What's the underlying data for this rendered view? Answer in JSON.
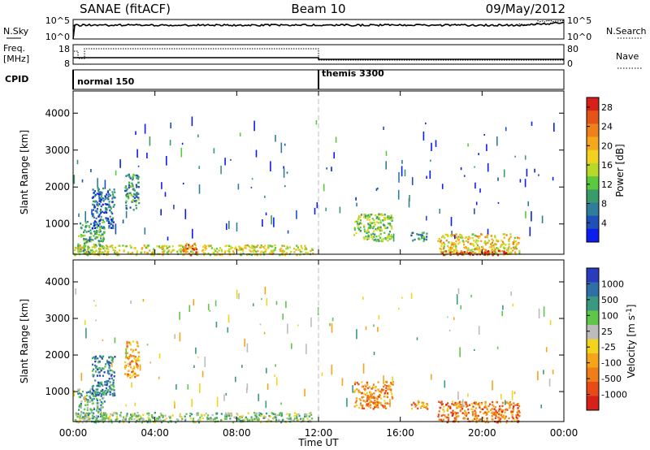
{
  "header": {
    "station": "SANAE (fitACF)",
    "beam": "Beam 10",
    "date": "09/May/2012"
  },
  "nsky_panel": {
    "left_label": "N.Sky",
    "right_label": "N.Search",
    "left_ticks": [
      "10^5",
      "10^0"
    ],
    "right_ticks": [
      "10^5",
      "10^0"
    ]
  },
  "freq_panel": {
    "left_label_1": "Freq.",
    "left_label_2": "[MHz]",
    "right_label": "Nave",
    "left_ticks": [
      "18",
      "8"
    ],
    "right_ticks": [
      "80",
      "0"
    ]
  },
  "cpid_panel": {
    "label": "CPID",
    "modes": [
      {
        "name": "normal 150",
        "start_hour": 0
      },
      {
        "name": "themis 3300",
        "start_hour": 12
      }
    ]
  },
  "x_axis": {
    "label": "Time UT",
    "ticks": [
      "00:00",
      "04:00",
      "08:00",
      "12:00",
      "16:00",
      "20:00",
      "00:00"
    ],
    "tick_hours": [
      0,
      4,
      8,
      12,
      16,
      20,
      24
    ],
    "range_hours": [
      0,
      24
    ]
  },
  "chart_data": [
    {
      "type": "heatmap",
      "name": "power",
      "ylabel": "Slant Range [km]",
      "yticks": [
        "1000",
        "2000",
        "3000",
        "4000"
      ],
      "ylim_km": [
        180,
        4600
      ],
      "xlim_hours": [
        0,
        24
      ],
      "colorbar": {
        "label": "Power [dB]",
        "ticks": [
          "4",
          "8",
          "12",
          "16",
          "20",
          "24",
          "28"
        ],
        "tick_values": [
          4,
          8,
          12,
          16,
          20,
          24,
          28
        ],
        "range": [
          0,
          30
        ],
        "colors": [
          "#0a1ef0",
          "#1f4fb8",
          "#2e7d9a",
          "#3a9b6a",
          "#5cc83c",
          "#b9d928",
          "#f2d21e",
          "#f6a81c",
          "#f0801a",
          "#e45418",
          "#d8201a"
        ]
      },
      "regions": [
        {
          "t": [
            0.2,
            1.5
          ],
          "r": [
            180,
            1100
          ],
          "level": 0.35
        },
        {
          "t": [
            0.9,
            2.0
          ],
          "r": [
            900,
            2000
          ],
          "level": 0.2
        },
        {
          "t": [
            2.5,
            3.2
          ],
          "r": [
            1400,
            2400
          ],
          "level": 0.3
        },
        {
          "t": [
            0.0,
            11.7
          ],
          "r": [
            180,
            450
          ],
          "level": 0.55
        },
        {
          "t": [
            5.3,
            6.0
          ],
          "r": [
            180,
            500
          ],
          "level": 0.8
        },
        {
          "t": [
            13.7,
            15.6
          ],
          "r": [
            550,
            1300
          ],
          "level": 0.45
        },
        {
          "t": [
            16.5,
            17.3
          ],
          "r": [
            550,
            800
          ],
          "level": 0.3
        },
        {
          "t": [
            17.8,
            21.8
          ],
          "r": [
            180,
            750
          ],
          "level": 0.6
        },
        {
          "t": [
            18.0,
            21.2
          ],
          "r": [
            180,
            300
          ],
          "level": 0.95
        }
      ]
    },
    {
      "type": "heatmap",
      "name": "velocity",
      "ylabel": "Slant Range [km]",
      "yticks": [
        "1000",
        "2000",
        "3000",
        "4000"
      ],
      "ylim_km": [
        180,
        4600
      ],
      "xlim_hours": [
        0,
        24
      ],
      "colorbar": {
        "label": "Velocity [m s^-1]",
        "ticks": [
          "1000",
          "500",
          "100",
          "25",
          "-25",
          "-100",
          "-500",
          "-1000"
        ],
        "tick_values": [
          1000,
          500,
          100,
          25,
          -25,
          -100,
          -500,
          -1000
        ],
        "colors": [
          "#2a3cbe",
          "#2f6fa8",
          "#3a9a80",
          "#60c64a",
          "#bcbcbc",
          "#f2d41c",
          "#f6a41a",
          "#f07e18",
          "#e84a18",
          "#d8201a"
        ]
      },
      "regions": [
        {
          "t": [
            0.2,
            1.5
          ],
          "r": [
            180,
            1100
          ],
          "level": 0.3
        },
        {
          "t": [
            0.9,
            2.0
          ],
          "r": [
            900,
            2000
          ],
          "level": 0.2
        },
        {
          "t": [
            2.5,
            3.2
          ],
          "r": [
            1400,
            2400
          ],
          "level": 0.65
        },
        {
          "t": [
            0.0,
            11.7
          ],
          "r": [
            180,
            450
          ],
          "level": 0.4
        },
        {
          "t": [
            13.7,
            15.6
          ],
          "r": [
            550,
            1300
          ],
          "level": 0.7
        },
        {
          "t": [
            16.5,
            17.3
          ],
          "r": [
            550,
            800
          ],
          "level": 0.7
        },
        {
          "t": [
            17.8,
            21.8
          ],
          "r": [
            180,
            750
          ],
          "level": 0.75
        }
      ]
    }
  ],
  "colors": {
    "frame": "#000000",
    "divider": "#bbbbbb",
    "background": "#ffffff"
  }
}
